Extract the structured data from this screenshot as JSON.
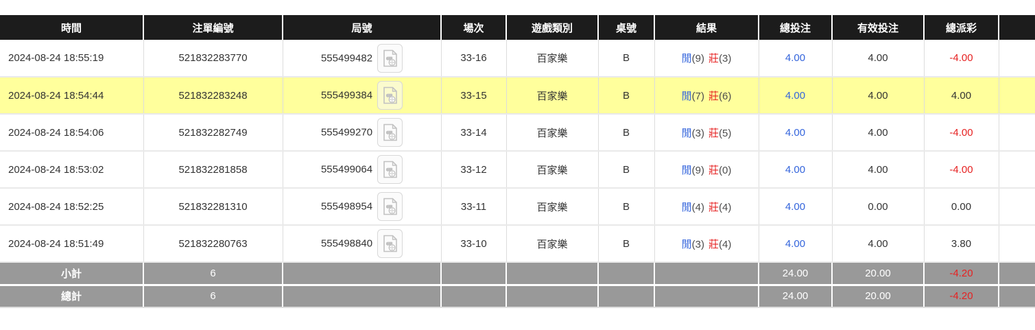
{
  "colors": {
    "header_bg": "#1c1c1c",
    "highlight_bg": "#ffff9c",
    "footer_bg": "#999999",
    "blue": "#3465dc",
    "red": "#e62222",
    "paren_gray": "#4d4d4d",
    "body_text": "#333333"
  },
  "table": {
    "headers": {
      "time": "時間",
      "bet_id": "注單編號",
      "round_id": "局號",
      "session": "場次",
      "game_type": "遊戲類別",
      "table_no": "桌號",
      "result": "結果",
      "total_bet": "總投注",
      "valid_bet": "有效投注",
      "total_payout": "總派彩",
      "extra": ""
    },
    "video_icon_name": "video-replay-icon",
    "rows": [
      {
        "time": "2024-08-24 18:55:19",
        "bet_id": "521832283770",
        "round_id": "555499482",
        "session": "33-16",
        "game_type": "百家樂",
        "table_no": "B",
        "result": {
          "player_label": "閒",
          "player_score": "(9)",
          "banker_label": "莊",
          "banker_score": "(3)"
        },
        "total_bet": "4.00",
        "valid_bet": "4.00",
        "payout": "-4.00",
        "highlight": false
      },
      {
        "time": "2024-08-24 18:54:44",
        "bet_id": "521832283248",
        "round_id": "555499384",
        "session": "33-15",
        "game_type": "百家樂",
        "table_no": "B",
        "result": {
          "player_label": "閒",
          "player_score": "(7)",
          "banker_label": "莊",
          "banker_score": "(6)"
        },
        "total_bet": "4.00",
        "valid_bet": "4.00",
        "payout": "4.00",
        "highlight": true
      },
      {
        "time": "2024-08-24 18:54:06",
        "bet_id": "521832282749",
        "round_id": "555499270",
        "session": "33-14",
        "game_type": "百家樂",
        "table_no": "B",
        "result": {
          "player_label": "閒",
          "player_score": "(3)",
          "banker_label": "莊",
          "banker_score": "(5)"
        },
        "total_bet": "4.00",
        "valid_bet": "4.00",
        "payout": "-4.00",
        "highlight": false
      },
      {
        "time": "2024-08-24 18:53:02",
        "bet_id": "521832281858",
        "round_id": "555499064",
        "session": "33-12",
        "game_type": "百家樂",
        "table_no": "B",
        "result": {
          "player_label": "閒",
          "player_score": "(9)",
          "banker_label": "莊",
          "banker_score": "(0)"
        },
        "total_bet": "4.00",
        "valid_bet": "4.00",
        "payout": "-4.00",
        "highlight": false
      },
      {
        "time": "2024-08-24 18:52:25",
        "bet_id": "521832281310",
        "round_id": "555498954",
        "session": "33-11",
        "game_type": "百家樂",
        "table_no": "B",
        "result": {
          "player_label": "閒",
          "player_score": "(4)",
          "banker_label": "莊",
          "banker_score": "(4)"
        },
        "total_bet": "4.00",
        "valid_bet": "0.00",
        "payout": "0.00",
        "highlight": false
      },
      {
        "time": "2024-08-24 18:51:49",
        "bet_id": "521832280763",
        "round_id": "555498840",
        "session": "33-10",
        "game_type": "百家樂",
        "table_no": "B",
        "result": {
          "player_label": "閒",
          "player_score": "(3)",
          "banker_label": "莊",
          "banker_score": "(4)"
        },
        "total_bet": "4.00",
        "valid_bet": "4.00",
        "payout": "3.80",
        "highlight": false
      }
    ],
    "footer": [
      {
        "label": "小計",
        "count": "6",
        "total_bet": "24.00",
        "valid_bet": "20.00",
        "payout": "-4.20"
      },
      {
        "label": "總計",
        "count": "6",
        "total_bet": "24.00",
        "valid_bet": "20.00",
        "payout": "-4.20"
      }
    ]
  }
}
